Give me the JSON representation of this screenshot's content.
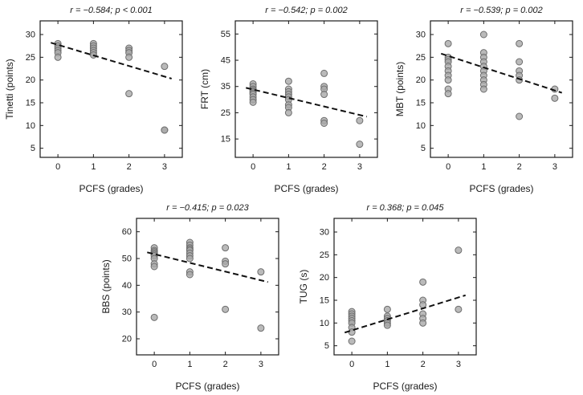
{
  "style": {
    "background": "#ffffff",
    "axis_color": "#1a1a1a",
    "text_color": "#1a1a1a",
    "point_fill": "#a9a9a9",
    "point_edge": "#6e6e6e",
    "trend_color": "#111111"
  },
  "chart_data": [
    {
      "type": "scatter",
      "name": "tinetti-vs-pcfs",
      "title": "r = −0.584;  p < 0.001",
      "r": -0.584,
      "p": "< 0.001",
      "xlabel": "PCFS (grades)",
      "ylabel": "Tinetti (points)",
      "xlim": [
        -0.5,
        3.5
      ],
      "ylim": [
        3,
        33
      ],
      "xticks": [
        0,
        1,
        2,
        3
      ],
      "yticks": [
        5,
        10,
        15,
        20,
        25,
        30
      ],
      "points": [
        [
          0,
          28
        ],
        [
          0,
          27.5
        ],
        [
          0,
          27
        ],
        [
          0,
          26.5
        ],
        [
          0,
          26
        ],
        [
          0,
          25
        ],
        [
          1,
          28
        ],
        [
          1,
          27.5
        ],
        [
          1,
          27
        ],
        [
          1,
          26.5
        ],
        [
          1,
          26
        ],
        [
          1,
          25.5
        ],
        [
          2,
          27
        ],
        [
          2,
          26.5
        ],
        [
          2,
          26
        ],
        [
          2,
          25
        ],
        [
          2,
          17
        ],
        [
          3,
          23
        ],
        [
          3,
          9
        ],
        [
          3,
          9
        ]
      ],
      "trend": [
        [
          -0.2,
          28.2
        ],
        [
          3.2,
          20.3
        ]
      ]
    },
    {
      "type": "scatter",
      "name": "frt-vs-pcfs",
      "title": "r = −0.542;  p = 0.002",
      "r": -0.542,
      "p": "= 0.002",
      "xlabel": "PCFS (grades)",
      "ylabel": "FRT (cm)",
      "xlim": [
        -0.5,
        3.5
      ],
      "ylim": [
        8,
        60
      ],
      "xticks": [
        0,
        1,
        2,
        3
      ],
      "yticks": [
        15,
        25,
        35,
        45,
        55
      ],
      "points": [
        [
          0,
          36
        ],
        [
          0,
          35
        ],
        [
          0,
          34
        ],
        [
          0,
          33.5
        ],
        [
          0,
          33
        ],
        [
          0,
          32.5
        ],
        [
          0,
          32
        ],
        [
          0,
          31
        ],
        [
          0,
          30
        ],
        [
          0,
          29
        ],
        [
          1,
          37
        ],
        [
          1,
          34
        ],
        [
          1,
          33
        ],
        [
          1,
          32
        ],
        [
          1,
          31
        ],
        [
          1,
          30
        ],
        [
          1,
          28
        ],
        [
          1,
          27
        ],
        [
          1,
          25
        ],
        [
          2,
          40
        ],
        [
          2,
          35
        ],
        [
          2,
          34
        ],
        [
          2,
          32
        ],
        [
          2,
          22
        ],
        [
          2,
          21
        ],
        [
          3,
          22
        ],
        [
          3,
          13
        ]
      ],
      "trend": [
        [
          -0.2,
          34.5
        ],
        [
          3.2,
          23.5
        ]
      ]
    },
    {
      "type": "scatter",
      "name": "mbt-vs-pcfs",
      "title": "r = −0.539;  p = 0.002",
      "r": -0.539,
      "p": "= 0.002",
      "xlabel": "PCFS (grades)",
      "ylabel": "MBT (points)",
      "xlim": [
        -0.5,
        3.5
      ],
      "ylim": [
        3,
        33
      ],
      "xticks": [
        0,
        1,
        2,
        3
      ],
      "yticks": [
        5,
        10,
        15,
        20,
        25,
        30
      ],
      "points": [
        [
          0,
          28
        ],
        [
          0,
          25
        ],
        [
          0,
          24.5
        ],
        [
          0,
          24
        ],
        [
          0,
          23
        ],
        [
          0,
          22
        ],
        [
          0,
          21
        ],
        [
          0,
          20
        ],
        [
          0,
          18
        ],
        [
          0,
          17
        ],
        [
          1,
          30
        ],
        [
          1,
          26
        ],
        [
          1,
          25
        ],
        [
          1,
          24
        ],
        [
          1,
          23
        ],
        [
          1,
          22
        ],
        [
          1,
          21
        ],
        [
          1,
          20
        ],
        [
          1,
          19
        ],
        [
          1,
          18
        ],
        [
          2,
          28
        ],
        [
          2,
          24
        ],
        [
          2,
          22
        ],
        [
          2,
          21
        ],
        [
          2,
          20
        ],
        [
          2,
          12
        ],
        [
          3,
          18
        ],
        [
          3,
          16
        ]
      ],
      "trend": [
        [
          -0.2,
          25.8
        ],
        [
          3.2,
          17.2
        ]
      ]
    },
    {
      "type": "scatter",
      "name": "bbs-vs-pcfs",
      "title": "r = −0.415;  p = 0.023",
      "r": -0.415,
      "p": "= 0.023",
      "xlabel": "PCFS (grades)",
      "ylabel": "BBS (points)",
      "xlim": [
        -0.5,
        3.5
      ],
      "ylim": [
        14,
        65
      ],
      "xticks": [
        0,
        1,
        2,
        3
      ],
      "yticks": [
        20,
        30,
        40,
        50,
        60
      ],
      "points": [
        [
          0,
          54
        ],
        [
          0,
          53
        ],
        [
          0,
          52.5
        ],
        [
          0,
          52
        ],
        [
          0,
          51.5
        ],
        [
          0,
          51
        ],
        [
          0,
          50
        ],
        [
          0,
          48
        ],
        [
          0,
          47
        ],
        [
          0,
          28
        ],
        [
          1,
          56
        ],
        [
          1,
          55
        ],
        [
          1,
          54
        ],
        [
          1,
          53.5
        ],
        [
          1,
          53
        ],
        [
          1,
          52
        ],
        [
          1,
          51
        ],
        [
          1,
          50
        ],
        [
          1,
          45
        ],
        [
          1,
          44
        ],
        [
          2,
          54
        ],
        [
          2,
          49
        ],
        [
          2,
          48
        ],
        [
          2,
          31
        ],
        [
          3,
          45
        ],
        [
          3,
          24
        ]
      ],
      "trend": [
        [
          -0.2,
          52.3
        ],
        [
          3.2,
          41.2
        ]
      ]
    },
    {
      "type": "scatter",
      "name": "tug-vs-pcfs",
      "title": "r = 0.368;  p = 0.045",
      "r": 0.368,
      "p": "= 0.045",
      "xlabel": "PCFS (grades)",
      "ylabel": "TUG (s)",
      "xlim": [
        -0.5,
        3.5
      ],
      "ylim": [
        3,
        33
      ],
      "xticks": [
        0,
        1,
        2,
        3
      ],
      "yticks": [
        5,
        10,
        15,
        20,
        25,
        30
      ],
      "points": [
        [
          0,
          12.5
        ],
        [
          0,
          12
        ],
        [
          0,
          11.5
        ],
        [
          0,
          11
        ],
        [
          0,
          10.5
        ],
        [
          0,
          10
        ],
        [
          0,
          9
        ],
        [
          0,
          8
        ],
        [
          0,
          6
        ],
        [
          1,
          13
        ],
        [
          1,
          11.5
        ],
        [
          1,
          11
        ],
        [
          1,
          10.5
        ],
        [
          1,
          10
        ],
        [
          1,
          9.5
        ],
        [
          2,
          19
        ],
        [
          2,
          15
        ],
        [
          2,
          14
        ],
        [
          2,
          12
        ],
        [
          2,
          11
        ],
        [
          2,
          10
        ],
        [
          3,
          26
        ],
        [
          3,
          13
        ]
      ],
      "trend": [
        [
          -0.2,
          7.9
        ],
        [
          3.2,
          16.1
        ]
      ]
    }
  ]
}
